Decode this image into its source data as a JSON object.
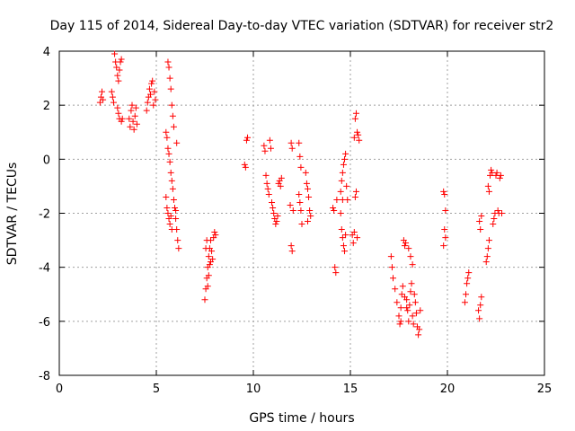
{
  "chart_data": {
    "type": "scatter",
    "title": "Day 115 of 2014, Sidereal Day-to-day VTEC variation (SDTVAR) for receiver str2",
    "xlabel": "GPS time / hours",
    "ylabel": "SDTVAR / TECUs",
    "xlim": [
      0,
      25
    ],
    "ylim": [
      -8,
      4
    ],
    "xticks": [
      "0",
      "5",
      "10",
      "15",
      "20",
      "25"
    ],
    "yticks": [
      "-8",
      "-6",
      "-4",
      "-2",
      "0",
      "2",
      "4"
    ],
    "grid": true,
    "marker": "+",
    "color": "#ff0000",
    "series": [
      {
        "name": "SDTVAR",
        "points": [
          [
            2.1,
            2.1
          ],
          [
            2.15,
            2.3
          ],
          [
            2.2,
            2.5
          ],
          [
            2.25,
            2.2
          ],
          [
            2.7,
            2.5
          ],
          [
            2.75,
            2.3
          ],
          [
            2.8,
            2.1
          ],
          [
            2.85,
            3.9
          ],
          [
            2.9,
            3.6
          ],
          [
            2.95,
            3.4
          ],
          [
            3.0,
            3.1
          ],
          [
            3.05,
            2.9
          ],
          [
            3.1,
            3.3
          ],
          [
            3.15,
            3.6
          ],
          [
            3.2,
            3.7
          ],
          [
            3.0,
            1.9
          ],
          [
            3.05,
            1.7
          ],
          [
            3.1,
            1.5
          ],
          [
            3.2,
            1.4
          ],
          [
            3.25,
            1.5
          ],
          [
            3.6,
            1.5
          ],
          [
            3.65,
            1.2
          ],
          [
            3.7,
            1.8
          ],
          [
            3.75,
            2.0
          ],
          [
            3.8,
            1.4
          ],
          [
            3.85,
            1.1
          ],
          [
            3.9,
            1.6
          ],
          [
            3.95,
            1.9
          ],
          [
            4.0,
            1.3
          ],
          [
            4.5,
            1.8
          ],
          [
            4.55,
            2.1
          ],
          [
            4.6,
            2.3
          ],
          [
            4.65,
            2.6
          ],
          [
            4.7,
            2.4
          ],
          [
            4.75,
            2.8
          ],
          [
            4.8,
            2.9
          ],
          [
            4.85,
            2.0
          ],
          [
            4.9,
            2.5
          ],
          [
            4.95,
            2.2
          ],
          [
            5.6,
            3.6
          ],
          [
            5.65,
            3.4
          ],
          [
            5.7,
            3.0
          ],
          [
            5.75,
            2.6
          ],
          [
            5.8,
            2.0
          ],
          [
            5.85,
            1.6
          ],
          [
            5.9,
            1.2
          ],
          [
            5.5,
            1.0
          ],
          [
            5.55,
            0.8
          ],
          [
            5.6,
            0.4
          ],
          [
            5.65,
            0.2
          ],
          [
            5.7,
            -0.1
          ],
          [
            5.75,
            -0.5
          ],
          [
            5.8,
            -0.8
          ],
          [
            5.85,
            -1.1
          ],
          [
            5.9,
            -1.5
          ],
          [
            5.95,
            -1.8
          ],
          [
            6.0,
            -2.2
          ],
          [
            6.05,
            -2.6
          ],
          [
            6.1,
            -3.0
          ],
          [
            6.15,
            -3.3
          ],
          [
            6.05,
            0.6
          ],
          [
            6.0,
            -1.9
          ],
          [
            5.5,
            -1.4
          ],
          [
            5.55,
            -1.8
          ],
          [
            5.6,
            -2.0
          ],
          [
            5.65,
            -2.2
          ],
          [
            5.7,
            -2.4
          ],
          [
            5.75,
            -2.1
          ],
          [
            5.8,
            -2.6
          ],
          [
            7.5,
            -5.2
          ],
          [
            7.55,
            -4.8
          ],
          [
            7.6,
            -4.4
          ],
          [
            7.65,
            -4.0
          ],
          [
            7.7,
            -3.6
          ],
          [
            7.75,
            -3.3
          ],
          [
            7.8,
            -3.0
          ],
          [
            7.85,
            -3.4
          ],
          [
            7.9,
            -3.7
          ],
          [
            7.6,
            -3.0
          ],
          [
            7.7,
            -4.3
          ],
          [
            7.75,
            -3.9
          ],
          [
            7.95,
            -2.9
          ],
          [
            8.0,
            -2.7
          ],
          [
            8.05,
            -2.8
          ],
          [
            7.55,
            -3.3
          ],
          [
            7.65,
            -4.7
          ],
          [
            7.8,
            -3.8
          ],
          [
            9.55,
            -0.2
          ],
          [
            9.6,
            -0.3
          ],
          [
            9.65,
            0.7
          ],
          [
            9.7,
            0.8
          ],
          [
            10.55,
            0.5
          ],
          [
            10.6,
            0.3
          ],
          [
            10.65,
            -0.6
          ],
          [
            10.7,
            -0.9
          ],
          [
            10.75,
            -1.1
          ],
          [
            10.8,
            -1.3
          ],
          [
            10.85,
            0.7
          ],
          [
            10.9,
            0.4
          ],
          [
            10.95,
            -1.6
          ],
          [
            11.0,
            -1.8
          ],
          [
            11.05,
            -2.0
          ],
          [
            11.1,
            -2.2
          ],
          [
            11.15,
            -2.4
          ],
          [
            11.2,
            -2.3
          ],
          [
            11.25,
            -2.1
          ],
          [
            11.3,
            -0.9
          ],
          [
            11.35,
            -0.8
          ],
          [
            11.4,
            -1.0
          ],
          [
            11.45,
            -0.7
          ],
          [
            11.9,
            -1.7
          ],
          [
            11.95,
            -3.2
          ],
          [
            12.0,
            -3.4
          ],
          [
            11.95,
            0.6
          ],
          [
            12.0,
            0.4
          ],
          [
            12.05,
            -1.9
          ],
          [
            12.35,
            0.6
          ],
          [
            12.4,
            0.1
          ],
          [
            12.45,
            -0.3
          ],
          [
            12.35,
            -1.3
          ],
          [
            12.4,
            -1.6
          ],
          [
            12.45,
            -1.9
          ],
          [
            12.5,
            -2.4
          ],
          [
            12.7,
            -0.5
          ],
          [
            12.75,
            -0.9
          ],
          [
            12.8,
            -1.1
          ],
          [
            12.85,
            -1.4
          ],
          [
            12.9,
            -1.9
          ],
          [
            12.95,
            -2.1
          ],
          [
            12.8,
            -2.3
          ],
          [
            14.1,
            -1.8
          ],
          [
            14.15,
            -1.9
          ],
          [
            14.2,
            -4.0
          ],
          [
            14.25,
            -4.2
          ],
          [
            14.3,
            -1.5
          ],
          [
            14.5,
            -1.2
          ],
          [
            14.55,
            -0.8
          ],
          [
            14.6,
            -0.5
          ],
          [
            14.65,
            -0.2
          ],
          [
            14.7,
            0.0
          ],
          [
            14.75,
            0.2
          ],
          [
            14.5,
            -2.0
          ],
          [
            14.55,
            -2.6
          ],
          [
            14.6,
            -2.9
          ],
          [
            14.65,
            -3.2
          ],
          [
            14.7,
            -3.4
          ],
          [
            14.75,
            -2.8
          ],
          [
            14.8,
            -1.0
          ],
          [
            14.85,
            -1.5
          ],
          [
            14.6,
            -1.5
          ],
          [
            15.1,
            -2.8
          ],
          [
            15.15,
            -3.1
          ],
          [
            15.2,
            -2.7
          ],
          [
            15.25,
            -1.4
          ],
          [
            15.3,
            -1.2
          ],
          [
            15.35,
            -2.9
          ],
          [
            15.2,
            0.8
          ],
          [
            15.25,
            1.5
          ],
          [
            15.3,
            1.7
          ],
          [
            15.35,
            1.0
          ],
          [
            15.4,
            0.9
          ],
          [
            15.45,
            0.7
          ],
          [
            17.1,
            -3.6
          ],
          [
            17.15,
            -4.0
          ],
          [
            17.2,
            -4.4
          ],
          [
            17.3,
            -4.8
          ],
          [
            17.4,
            -5.3
          ],
          [
            17.5,
            -5.8
          ],
          [
            17.55,
            -6.1
          ],
          [
            17.6,
            -5.5
          ],
          [
            17.65,
            -5.0
          ],
          [
            17.7,
            -4.7
          ],
          [
            17.75,
            -3.0
          ],
          [
            17.8,
            -3.2
          ],
          [
            17.85,
            -3.1
          ],
          [
            17.9,
            -5.2
          ],
          [
            17.95,
            -5.6
          ],
          [
            18.0,
            -6.0
          ],
          [
            18.05,
            -5.4
          ],
          [
            18.1,
            -4.9
          ],
          [
            18.15,
            -4.6
          ],
          [
            18.0,
            -3.3
          ],
          [
            18.1,
            -3.6
          ],
          [
            18.2,
            -3.9
          ],
          [
            18.3,
            -5.0
          ],
          [
            18.35,
            -5.3
          ],
          [
            18.4,
            -5.7
          ],
          [
            18.45,
            -6.2
          ],
          [
            18.5,
            -6.5
          ],
          [
            18.55,
            -6.3
          ],
          [
            18.6,
            -5.6
          ],
          [
            17.8,
            -5.1
          ],
          [
            17.9,
            -5.5
          ],
          [
            18.2,
            -5.8
          ],
          [
            18.25,
            -6.1
          ],
          [
            17.6,
            -6.0
          ],
          [
            19.8,
            -1.2
          ],
          [
            19.85,
            -1.3
          ],
          [
            19.9,
            -1.9
          ],
          [
            19.85,
            -2.6
          ],
          [
            19.9,
            -2.9
          ],
          [
            19.8,
            -3.2
          ],
          [
            20.9,
            -5.3
          ],
          [
            20.95,
            -5.0
          ],
          [
            21.0,
            -4.6
          ],
          [
            21.05,
            -4.4
          ],
          [
            21.1,
            -4.2
          ],
          [
            21.6,
            -5.6
          ],
          [
            21.65,
            -5.9
          ],
          [
            21.7,
            -5.4
          ],
          [
            21.75,
            -5.1
          ],
          [
            21.65,
            -2.3
          ],
          [
            21.7,
            -2.6
          ],
          [
            21.75,
            -2.1
          ],
          [
            22.0,
            -3.8
          ],
          [
            22.05,
            -3.6
          ],
          [
            22.1,
            -3.3
          ],
          [
            22.15,
            -3.0
          ],
          [
            22.1,
            -1.0
          ],
          [
            22.15,
            -1.2
          ],
          [
            22.2,
            -0.6
          ],
          [
            22.25,
            -0.4
          ],
          [
            22.3,
            -0.5
          ],
          [
            22.35,
            -2.4
          ],
          [
            22.4,
            -2.2
          ],
          [
            22.45,
            -2.0
          ],
          [
            22.5,
            -0.6
          ],
          [
            22.55,
            -0.5
          ],
          [
            22.6,
            -1.9
          ],
          [
            22.65,
            -2.0
          ],
          [
            22.7,
            -0.7
          ],
          [
            22.75,
            -0.6
          ],
          [
            22.8,
            -2.0
          ]
        ]
      }
    ]
  }
}
